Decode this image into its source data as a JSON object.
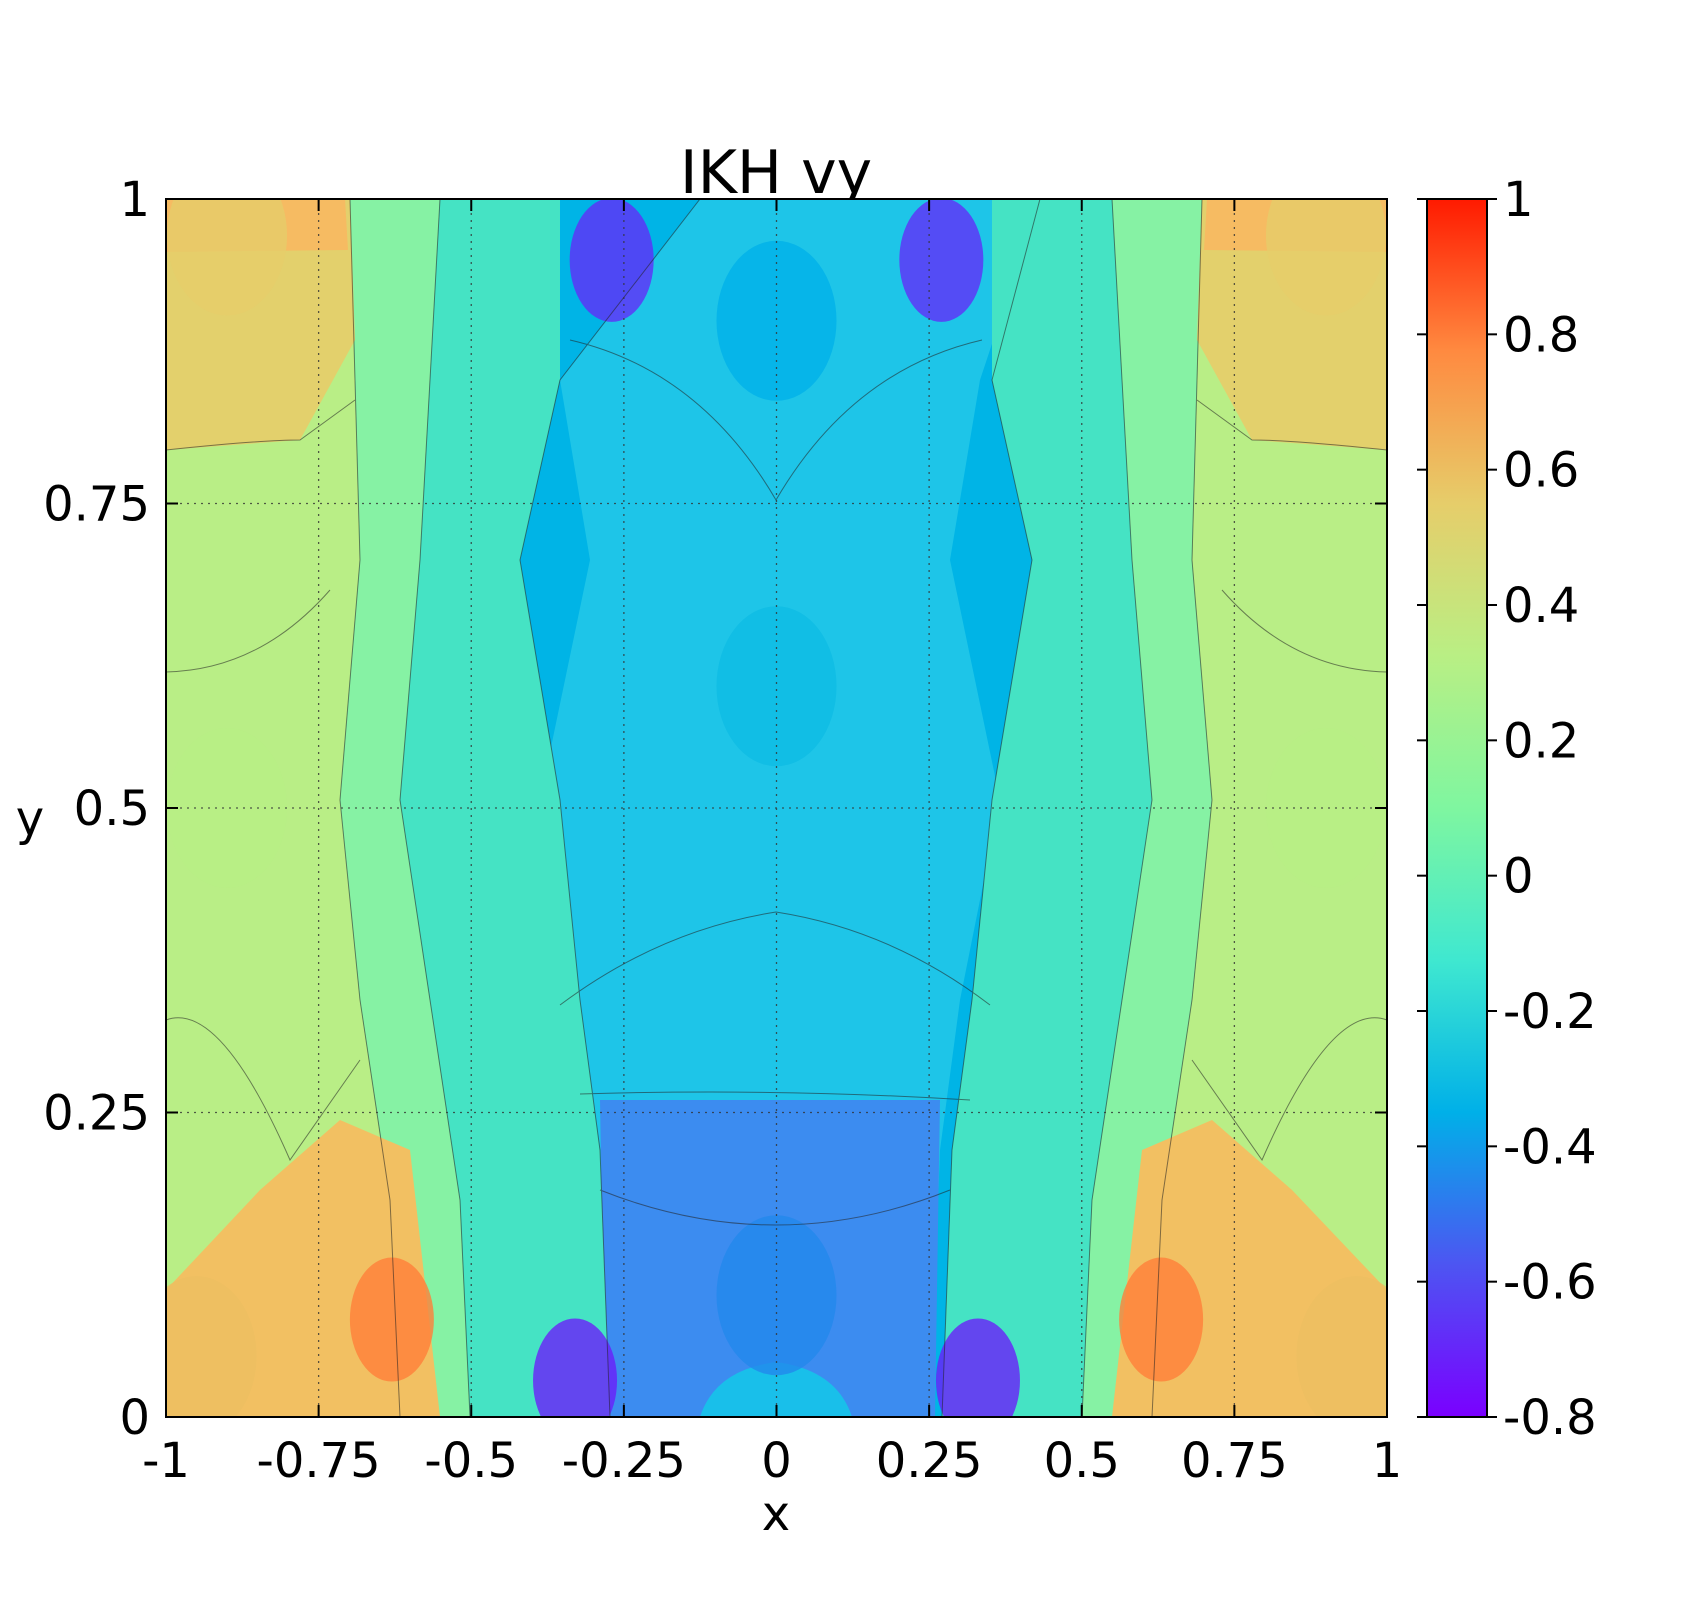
{
  "chart_data": {
    "type": "heatmap",
    "title": "IKH vy",
    "xlabel": "x",
    "ylabel": "y",
    "xlim": [
      -1,
      1
    ],
    "ylim": [
      0,
      1
    ],
    "x_ticks": [
      "-1",
      "-0.75",
      "-0.5",
      "-0.25",
      "0",
      "0.25",
      "0.5",
      "0.75",
      "1"
    ],
    "y_ticks": [
      "0",
      "0.25",
      "0.5",
      "0.75",
      "1"
    ],
    "grid": true,
    "colorbar": {
      "range": [
        -0.8,
        1
      ],
      "ticks": [
        "-0.8",
        "-0.6",
        "-0.4",
        "-0.2",
        "0",
        "0.2",
        "0.4",
        "0.6",
        "0.8",
        "1"
      ],
      "colormap": "rainbow",
      "stops": [
        "#7a00ff",
        "#4d55f2",
        "#00b0e8",
        "#3fe8d0",
        "#7ff6a0",
        "#b9ef84",
        "#e6cd6a",
        "#ff8a40",
        "#ff1a00"
      ]
    },
    "field_description": "Symmetric about x=0: negative vy (blue/violet) in central column, positive vy (yellow/orange) at outer sides; minima near (±0.33, 0.03) and (±0.27, 0.95), maxima near (±0.63, 0.08)",
    "features": [
      {
        "x": 0.33,
        "y": 0.03,
        "value": -0.72
      },
      {
        "x": -0.33,
        "y": 0.03,
        "value": -0.72
      },
      {
        "x": 0.27,
        "y": 0.95,
        "value": -0.68
      },
      {
        "x": -0.27,
        "y": 0.95,
        "value": -0.68
      },
      {
        "x": 0.63,
        "y": 0.08,
        "value": 0.8
      },
      {
        "x": -0.63,
        "y": 0.08,
        "value": 0.8
      },
      {
        "x": 0.0,
        "y": 0.6,
        "value": -0.3
      },
      {
        "x": 0.0,
        "y": 0.1,
        "value": -0.45
      },
      {
        "x": 0.0,
        "y": 0.9,
        "value": -0.35
      },
      {
        "x": 0.9,
        "y": 0.5,
        "value": 0.32
      },
      {
        "x": -0.9,
        "y": 0.5,
        "value": 0.32
      },
      {
        "x": 0.9,
        "y": 0.97,
        "value": 0.55
      },
      {
        "x": -0.9,
        "y": 0.97,
        "value": 0.55
      },
      {
        "x": 0.95,
        "y": 0.05,
        "value": 0.6
      },
      {
        "x": -0.95,
        "y": 0.05,
        "value": 0.6
      }
    ]
  }
}
